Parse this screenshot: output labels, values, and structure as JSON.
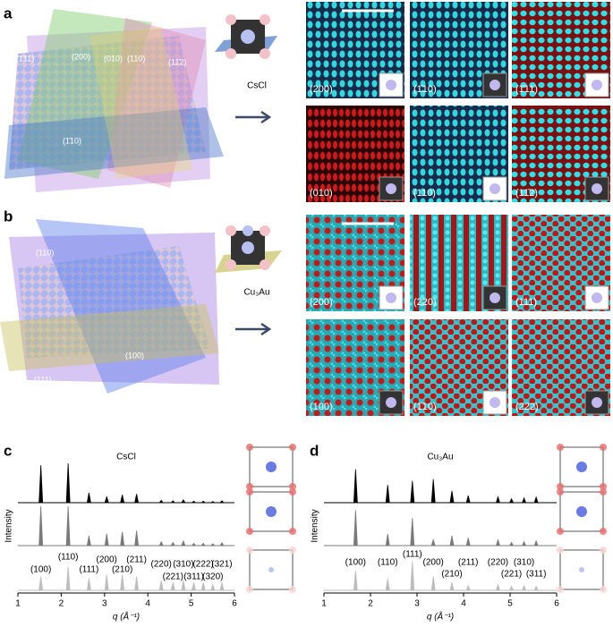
{
  "panel_a": {
    "letter": "a",
    "material": "CsCl",
    "plane_labels": [
      "(1̄11)",
      "(200)",
      "(010)",
      "(110)",
      "(11̄2)",
      "(1̄10)"
    ],
    "tiles": [
      "(200)",
      "(1̄10)",
      "(1̄11)",
      "(010)",
      "(110)",
      "(11̄2)"
    ]
  },
  "panel_b": {
    "letter": "b",
    "material": "Cu₃Au",
    "plane_labels": [
      "(110)",
      "(100)",
      "(111)"
    ],
    "tiles": [
      "(200)",
      "(220)",
      "(111)",
      "(100)",
      "(1̄10)",
      "(222)"
    ]
  },
  "chart_data": [
    {
      "type": "peaks",
      "letter": "c",
      "title": "CsCl",
      "y_label": "Intensity",
      "x_label": "q (Å⁻¹)",
      "xlim": [
        1,
        6
      ],
      "xticks": [
        1,
        2,
        3,
        4,
        5,
        6
      ],
      "peak_labels": [
        "(100)",
        "(110)",
        "(111)",
        "(200)",
        "(210)",
        "(211)",
        "(220)",
        "(221)",
        "(310)",
        "(311)",
        "(222)",
        "(320)",
        "(321)"
      ],
      "peak_q": [
        1.53,
        2.16,
        2.64,
        3.05,
        3.41,
        3.74,
        4.31,
        4.58,
        4.82,
        5.06,
        5.28,
        5.5,
        5.71
      ],
      "series": [
        {
          "color": "#000000",
          "values": [
            0.95,
            1.0,
            0.25,
            0.15,
            0.2,
            0.22,
            0.06,
            0.05,
            0.07,
            0.04,
            0.04,
            0.03,
            0.05
          ]
        },
        {
          "color": "#7a7a7a",
          "values": [
            1.0,
            1.0,
            0.25,
            0.3,
            0.35,
            0.38,
            0.1,
            0.08,
            0.12,
            0.06,
            0.06,
            0.05,
            0.07
          ]
        },
        {
          "color": "#bdbdbd",
          "values": [
            0.35,
            0.6,
            0.3,
            0.4,
            0.4,
            0.35,
            0.25,
            0.2,
            0.25,
            0.2,
            0.2,
            0.15,
            0.2
          ]
        }
      ]
    },
    {
      "type": "peaks",
      "letter": "d",
      "title": "Cu₃Au",
      "y_label": "Intensity",
      "x_label": "q (Å⁻¹)",
      "xlim": [
        1,
        6
      ],
      "xticks": [
        1,
        2,
        3,
        4,
        5,
        6
      ],
      "peak_labels": [
        "(100)",
        "(110)",
        "(111)",
        "(200)",
        "(210)",
        "(211)",
        "(220)",
        "(221)",
        "(310)",
        "(311)"
      ],
      "peak_q": [
        1.68,
        2.37,
        2.9,
        3.35,
        3.75,
        4.1,
        4.74,
        5.03,
        5.3,
        5.56
      ],
      "series": [
        {
          "color": "#000000",
          "values": [
            0.85,
            0.45,
            0.55,
            0.6,
            0.3,
            0.18,
            0.15,
            0.1,
            0.12,
            0.14
          ]
        },
        {
          "color": "#7a7a7a",
          "values": [
            0.9,
            0.3,
            0.7,
            0.15,
            0.25,
            0.2,
            0.15,
            0.08,
            0.1,
            0.12
          ]
        },
        {
          "color": "#bdbdbd",
          "values": [
            0.5,
            0.3,
            0.75,
            0.35,
            0.2,
            0.12,
            0.15,
            0.1,
            0.12,
            0.1
          ]
        }
      ]
    }
  ]
}
